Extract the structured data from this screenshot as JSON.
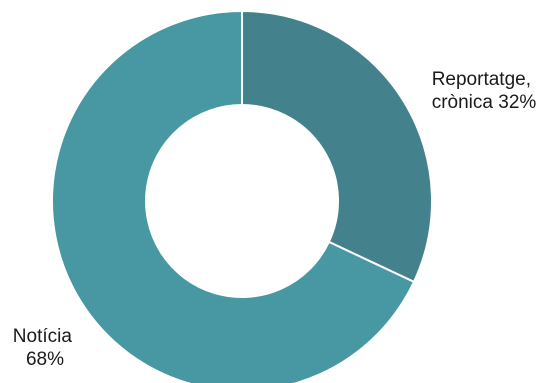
{
  "chart_data": {
    "type": "pie",
    "variant": "donut",
    "title": "",
    "categories": [
      "Reportatge, crònica",
      "Notícia"
    ],
    "values": [
      32,
      68
    ],
    "unit": "%",
    "colors": [
      "#43818c",
      "#4898a3"
    ],
    "labels": [
      {
        "lines": [
          "Reportatge,",
          "crònica 32%"
        ]
      },
      {
        "lines": [
          "Notícia",
          "68%"
        ]
      }
    ]
  }
}
